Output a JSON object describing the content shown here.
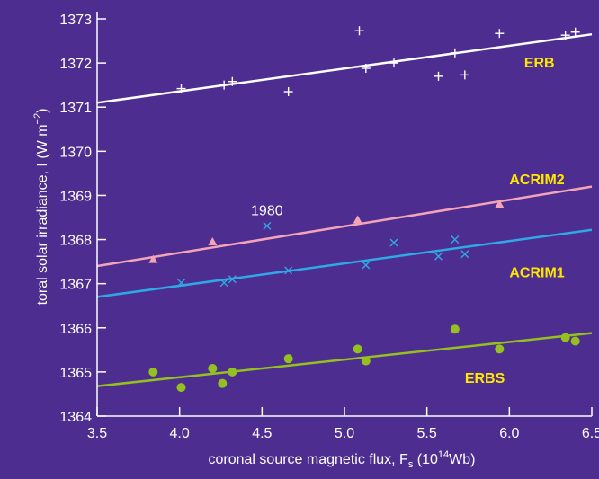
{
  "chart_data": {
    "type": "scatter",
    "title": "",
    "xlabel": "coronal source magnetic flux, F",
    "xlabel_sub": "s",
    "xlabel_unit_open": " (10",
    "xlabel_unit_sup": "14",
    "xlabel_unit_close": "Wb)",
    "ylabel": "toral solar irradiance, I (W m",
    "ylabel_sup": "−2",
    "ylabel_close": ")",
    "xlim": [
      3.5,
      6.5
    ],
    "ylim": [
      1364,
      1373
    ],
    "x_ticks": [
      "3.5",
      "4.0",
      "4.5",
      "5.0",
      "5.5",
      "6.0",
      "6.5"
    ],
    "y_ticks": [
      "1364",
      "1365",
      "1366",
      "1367",
      "1368",
      "1369",
      "1370",
      "1371",
      "1372",
      "1373"
    ],
    "grid": false,
    "background": "#4d2d8f",
    "annotations": [
      {
        "text": "1980",
        "x": 4.53,
        "y": 1368.55
      }
    ],
    "series": [
      {
        "name": "ERB",
        "marker": "plus",
        "color": "#ffffff",
        "label_color": "#ffe800",
        "label_pos": [
          6.09,
          1371.9
        ],
        "fit": [
          [
            3.5,
            1371.1
          ],
          [
            6.5,
            1372.65
          ]
        ],
        "points": [
          [
            4.01,
            1371.42
          ],
          [
            4.27,
            1371.5
          ],
          [
            4.32,
            1371.58
          ],
          [
            4.66,
            1371.35
          ],
          [
            5.09,
            1372.73
          ],
          [
            5.13,
            1371.88
          ],
          [
            5.3,
            1372.0
          ],
          [
            5.57,
            1371.7
          ],
          [
            5.67,
            1372.23
          ],
          [
            5.73,
            1371.73
          ],
          [
            5.94,
            1372.67
          ],
          [
            6.34,
            1372.63
          ],
          [
            6.4,
            1372.7
          ]
        ]
      },
      {
        "name": "ACRIM2",
        "marker": "triangle",
        "color": "#f4a4b8",
        "label_color": "#ffe800",
        "label_pos": [
          6.0,
          1369.25
        ],
        "fit": [
          [
            3.5,
            1367.4
          ],
          [
            6.5,
            1369.2
          ]
        ],
        "points": [
          [
            3.84,
            1367.55
          ],
          [
            4.2,
            1367.95
          ],
          [
            5.08,
            1368.45
          ],
          [
            5.94,
            1368.8
          ]
        ]
      },
      {
        "name": "ACRIM1",
        "marker": "x",
        "color": "#2fa9e6",
        "label_color": "#ffe800",
        "label_pos": [
          6.0,
          1367.15
        ],
        "fit": [
          [
            3.5,
            1366.7
          ],
          [
            6.5,
            1368.22
          ]
        ],
        "points": [
          [
            4.01,
            1367.02
          ],
          [
            4.27,
            1367.02
          ],
          [
            4.32,
            1367.1
          ],
          [
            4.53,
            1368.31
          ],
          [
            4.66,
            1367.3
          ],
          [
            5.13,
            1367.42
          ],
          [
            5.3,
            1367.93
          ],
          [
            5.57,
            1367.62
          ],
          [
            5.67,
            1368.0
          ],
          [
            5.73,
            1367.67
          ]
        ]
      },
      {
        "name": "ERBS",
        "marker": "circle",
        "color": "#94c11f",
        "label_color": "#ffe800",
        "label_pos": [
          5.73,
          1364.75
        ],
        "fit": [
          [
            3.5,
            1364.68
          ],
          [
            6.5,
            1365.88
          ]
        ],
        "points": [
          [
            3.84,
            1365.0
          ],
          [
            4.01,
            1364.65
          ],
          [
            4.2,
            1365.08
          ],
          [
            4.26,
            1364.74
          ],
          [
            4.32,
            1365.0
          ],
          [
            4.66,
            1365.3
          ],
          [
            5.08,
            1365.52
          ],
          [
            5.13,
            1365.25
          ],
          [
            5.67,
            1365.97
          ],
          [
            5.94,
            1365.52
          ],
          [
            6.34,
            1365.78
          ],
          [
            6.4,
            1365.7
          ]
        ]
      }
    ]
  }
}
